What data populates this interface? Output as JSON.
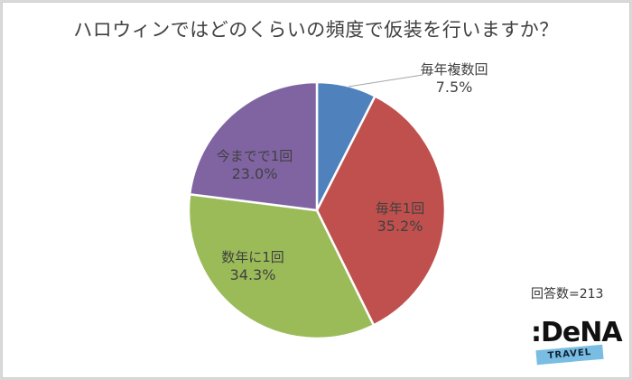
{
  "chart_data": {
    "type": "pie",
    "title": "ハロウィンではどのくらいの頻度で仮装を行いますか？",
    "categories": [
      "毎年複数回",
      "毎年1回",
      "数年に1回",
      "今までで1回"
    ],
    "values": [
      7.5,
      35.2,
      34.3,
      23.0
    ],
    "value_labels": [
      "7.5%",
      "35.2%",
      "34.3%",
      "23.0%"
    ],
    "colors": [
      "#4f81bd",
      "#c0504d",
      "#9bbb59",
      "#8064a2"
    ],
    "start_angle": "12 o'clock, clockwise",
    "legend": "none (data labels on slices)",
    "annotation": "回答数=213"
  },
  "title": "ハロウィンではどのくらいの頻度で仮装を行いますか？",
  "labels": [
    {
      "name": "毎年複数回",
      "pct": "7.5%"
    },
    {
      "name": "毎年1回",
      "pct": "35.2%"
    },
    {
      "name": "数年に1回",
      "pct": "34.3%"
    },
    {
      "name": "今までで1回",
      "pct": "23.0%"
    }
  ],
  "respondents": "回答数=213",
  "logo": {
    "main": ":DeNA",
    "sub": "TRAVEL"
  }
}
